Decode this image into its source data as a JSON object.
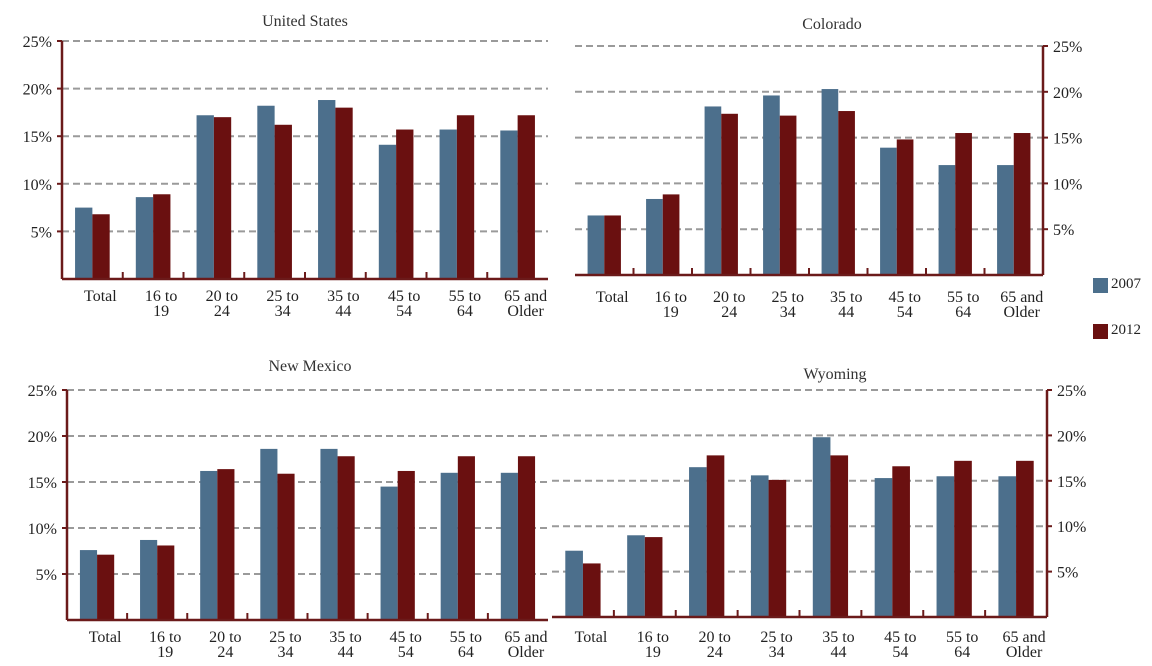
{
  "colors": {
    "s2007": "#4C6F8C",
    "s2012": "#6A1010",
    "axis": "#6B1A1A",
    "grid": "#9a9a9a"
  },
  "legend": [
    {
      "name": "2007",
      "color": "#4C6F8C"
    },
    {
      "name": "2012",
      "color": "#6A1010"
    }
  ],
  "chart_data": [
    {
      "type": "bar",
      "title": "United States",
      "axis_side": "left",
      "ylim": [
        0,
        25
      ],
      "yticks": [
        "5%",
        "10%",
        "15%",
        "20%",
        "25%"
      ],
      "grid": true,
      "categories": [
        [
          "Total"
        ],
        [
          "16 to",
          "19"
        ],
        [
          "20 to",
          "24"
        ],
        [
          "25 to",
          "34"
        ],
        [
          "35 to",
          "44"
        ],
        [
          "45 to",
          "54"
        ],
        [
          "55 to",
          "64"
        ],
        [
          "65 and",
          "Older"
        ]
      ],
      "series": [
        {
          "name": "2007",
          "values": [
            7.5,
            8.6,
            17.2,
            18.2,
            18.8,
            14.1,
            15.7,
            15.6
          ]
        },
        {
          "name": "2012",
          "values": [
            6.8,
            8.9,
            17.0,
            16.2,
            18.0,
            15.7,
            17.2,
            17.2
          ]
        }
      ]
    },
    {
      "type": "bar",
      "title": "Colorado",
      "axis_side": "right",
      "ylim": [
        0,
        25
      ],
      "yticks": [
        "5%",
        "10%",
        "15%",
        "20%",
        "25%"
      ],
      "grid": true,
      "categories": [
        [
          "Total"
        ],
        [
          "16 to",
          "19"
        ],
        [
          "20 to",
          "24"
        ],
        [
          "25 to",
          "34"
        ],
        [
          "35 to",
          "44"
        ],
        [
          "45 to",
          "54"
        ],
        [
          "55 to",
          "64"
        ],
        [
          "65 and",
          "Older"
        ]
      ],
      "series": [
        {
          "name": "2007",
          "values": [
            6.5,
            8.3,
            18.4,
            19.6,
            20.3,
            13.9,
            12.0,
            12.0
          ]
        },
        {
          "name": "2012",
          "values": [
            6.5,
            8.8,
            17.6,
            17.4,
            17.9,
            14.8,
            15.5,
            15.5
          ]
        }
      ]
    },
    {
      "type": "bar",
      "title": "New Mexico",
      "axis_side": "left",
      "ylim": [
        0,
        25
      ],
      "yticks": [
        "5%",
        "10%",
        "15%",
        "20%",
        "25%"
      ],
      "grid": true,
      "categories": [
        [
          "Total"
        ],
        [
          "16 to",
          "19"
        ],
        [
          "20 to",
          "24"
        ],
        [
          "25 to",
          "34"
        ],
        [
          "35 to",
          "44"
        ],
        [
          "45 to",
          "54"
        ],
        [
          "55 to",
          "64"
        ],
        [
          "65 and",
          "Older"
        ]
      ],
      "series": [
        {
          "name": "2007",
          "values": [
            7.6,
            8.7,
            16.2,
            18.6,
            18.6,
            14.5,
            16.0,
            16.0
          ]
        },
        {
          "name": "2012",
          "values": [
            7.1,
            8.1,
            16.4,
            15.9,
            17.8,
            16.2,
            17.8,
            17.8
          ]
        }
      ]
    },
    {
      "type": "bar",
      "title": "Wyoming",
      "axis_side": "right",
      "ylim": [
        0,
        25
      ],
      "yticks": [
        "5%",
        "10%",
        "15%",
        "20%",
        "25%"
      ],
      "grid": true,
      "categories": [
        [
          "Total"
        ],
        [
          "16 to",
          "19"
        ],
        [
          "20 to",
          "24"
        ],
        [
          "25 to",
          "34"
        ],
        [
          "35 to",
          "44"
        ],
        [
          "45 to",
          "54"
        ],
        [
          "55 to",
          "64"
        ],
        [
          "65 and",
          "Older"
        ]
      ],
      "series": [
        {
          "name": "2007",
          "values": [
            7.3,
            9.0,
            16.5,
            15.6,
            19.8,
            15.3,
            15.5,
            15.5
          ]
        },
        {
          "name": "2012",
          "values": [
            5.9,
            8.8,
            17.8,
            15.1,
            17.8,
            16.6,
            17.2,
            17.2
          ]
        }
      ]
    }
  ]
}
